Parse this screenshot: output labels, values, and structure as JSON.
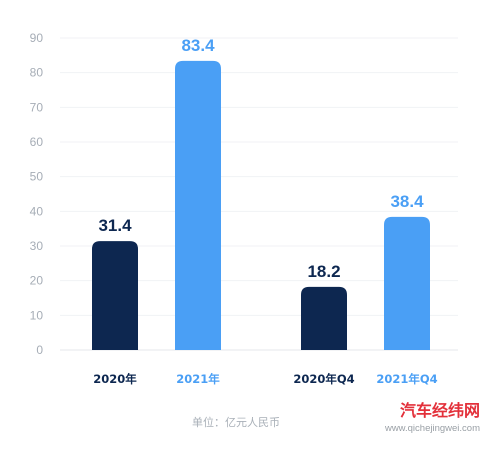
{
  "chart_data": {
    "type": "bar",
    "categories": [
      "2020年",
      "2021年",
      "2020年Q4",
      "2021年Q4"
    ],
    "values": [
      31.4,
      83.4,
      18.2,
      38.4
    ],
    "value_labels": [
      "31.4",
      "83.4",
      "18.2",
      "38.4"
    ],
    "bar_colors": [
      "#0d2750",
      "#4a9ff5",
      "#0d2750",
      "#4a9ff5"
    ],
    "category_label_colors": [
      "#0d2750",
      "#4a9ff5",
      "#0d2750",
      "#4a9ff5"
    ],
    "yticks": [
      "0",
      "10",
      "20",
      "30",
      "40",
      "50",
      "60",
      "70",
      "80",
      "90"
    ],
    "ylim": [
      0,
      90
    ],
    "grid": true,
    "unit_note": "单位：亿元人民币"
  },
  "watermark": {
    "name": "汽车经纬网",
    "url": "www.qichejingwei.com"
  }
}
